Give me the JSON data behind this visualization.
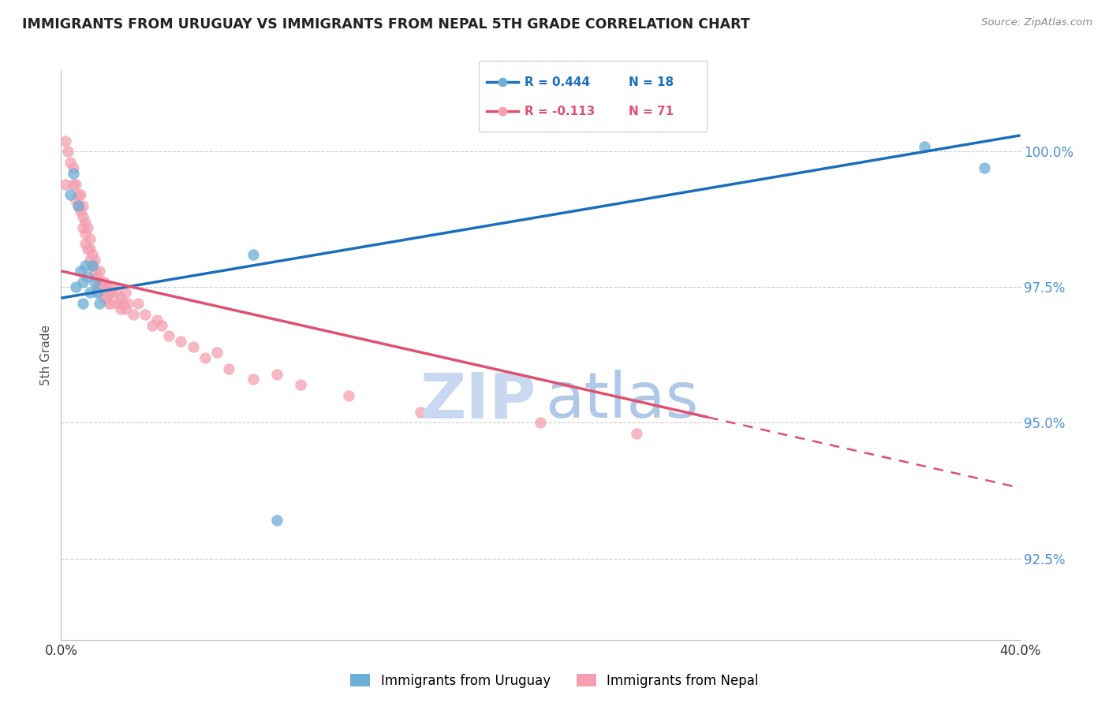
{
  "title": "IMMIGRANTS FROM URUGUAY VS IMMIGRANTS FROM NEPAL 5TH GRADE CORRELATION CHART",
  "source": "Source: ZipAtlas.com",
  "ylabel": "5th Grade",
  "yticks": [
    92.5,
    95.0,
    97.5,
    100.0
  ],
  "ytick_labels": [
    "92.5%",
    "95.0%",
    "97.5%",
    "100.0%"
  ],
  "xmin": 0.0,
  "xmax": 0.4,
  "ymin": 91.0,
  "ymax": 101.5,
  "legend_r_uruguay": "R = 0.444",
  "legend_n_uruguay": "N = 18",
  "legend_r_nepal": "R = -0.113",
  "legend_n_nepal": "N = 71",
  "legend_label_uruguay": "Immigrants from Uruguay",
  "legend_label_nepal": "Immigrants from Nepal",
  "color_uruguay": "#6baed6",
  "color_nepal": "#f4a0b0",
  "color_trendline_uruguay": "#1a6fbd",
  "color_trendline_nepal": "#e05070",
  "watermark_zip_color": "#c8d8f0",
  "watermark_atlas_color": "#b0c8e8",
  "trendline_uruguay_x0": 0.0,
  "trendline_uruguay_y0": 97.3,
  "trendline_uruguay_x1": 0.4,
  "trendline_uruguay_y1": 100.3,
  "trendline_nepal_x0": 0.0,
  "trendline_nepal_y0": 97.8,
  "trendline_nepal_x1": 0.4,
  "trendline_nepal_y1": 93.8,
  "trendline_nepal_solid_end": 0.27,
  "uruguay_x": [
    0.004,
    0.005,
    0.006,
    0.007,
    0.008,
    0.009,
    0.009,
    0.01,
    0.011,
    0.012,
    0.013,
    0.014,
    0.015,
    0.016,
    0.08,
    0.09,
    0.36,
    0.385
  ],
  "uruguay_y": [
    99.2,
    99.6,
    97.5,
    99.0,
    97.8,
    97.2,
    97.6,
    97.9,
    97.7,
    97.4,
    97.9,
    97.6,
    97.4,
    97.2,
    98.1,
    93.2,
    100.1,
    99.7
  ],
  "nepal_x": [
    0.002,
    0.002,
    0.003,
    0.004,
    0.005,
    0.005,
    0.006,
    0.006,
    0.007,
    0.007,
    0.008,
    0.008,
    0.009,
    0.009,
    0.009,
    0.01,
    0.01,
    0.01,
    0.011,
    0.011,
    0.012,
    0.012,
    0.012,
    0.013,
    0.013,
    0.014,
    0.014,
    0.015,
    0.015,
    0.016,
    0.016,
    0.016,
    0.017,
    0.017,
    0.018,
    0.018,
    0.018,
    0.019,
    0.019,
    0.02,
    0.02,
    0.021,
    0.021,
    0.022,
    0.023,
    0.024,
    0.025,
    0.025,
    0.026,
    0.027,
    0.027,
    0.028,
    0.03,
    0.032,
    0.035,
    0.038,
    0.04,
    0.042,
    0.045,
    0.05,
    0.055,
    0.06,
    0.065,
    0.07,
    0.08,
    0.09,
    0.1,
    0.12,
    0.15,
    0.2,
    0.24
  ],
  "nepal_y": [
    99.4,
    100.2,
    100.0,
    99.8,
    99.4,
    99.7,
    99.1,
    99.4,
    99.2,
    99.0,
    98.9,
    99.2,
    98.8,
    98.6,
    99.0,
    98.7,
    98.5,
    98.3,
    98.6,
    98.2,
    98.4,
    98.2,
    98.0,
    98.1,
    97.9,
    98.0,
    97.8,
    97.7,
    97.5,
    97.8,
    97.6,
    97.4,
    97.6,
    97.5,
    97.5,
    97.3,
    97.6,
    97.5,
    97.3,
    97.4,
    97.2,
    97.4,
    97.2,
    97.5,
    97.4,
    97.2,
    97.3,
    97.1,
    97.2,
    97.4,
    97.1,
    97.2,
    97.0,
    97.2,
    97.0,
    96.8,
    96.9,
    96.8,
    96.6,
    96.5,
    96.4,
    96.2,
    96.3,
    96.0,
    95.8,
    95.9,
    95.7,
    95.5,
    95.2,
    95.0,
    94.8
  ]
}
